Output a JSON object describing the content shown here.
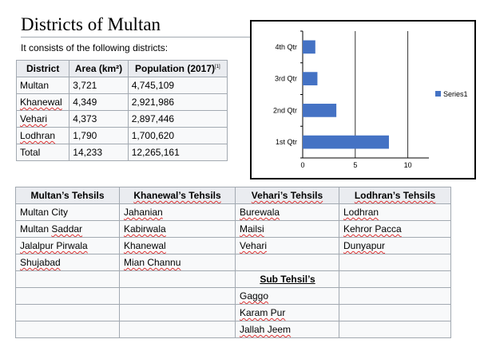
{
  "page": {
    "title": "Districts of Multan",
    "intro": "It consists of the following districts:"
  },
  "districts": {
    "headers": [
      "District",
      "Area (km²)",
      "Population (2017)"
    ],
    "ref_mark": "[1]",
    "rows": [
      [
        "Multan",
        "3,721",
        "4,745,109"
      ],
      [
        "Khanewal",
        "4,349",
        "2,921,986"
      ],
      [
        "Vehari",
        "4,373",
        "2,897,446"
      ],
      [
        "Lodhran",
        "1,790",
        "1,700,620"
      ],
      [
        "Total",
        "14,233",
        "12,265,161"
      ]
    ]
  },
  "chart_data": {
    "type": "bar",
    "orientation": "horizontal",
    "categories": [
      "1st Qtr",
      "2nd Qtr",
      "3rd Qtr",
      "4th Qtr"
    ],
    "series": [
      {
        "name": "Series1",
        "values": [
          8.2,
          3.2,
          1.4,
          1.2
        ],
        "color": "#4472c4"
      }
    ],
    "xlim": [
      0,
      12
    ],
    "xticks": [
      "0",
      "5",
      "10"
    ],
    "title": "",
    "xlabel": "",
    "ylabel": "",
    "grid": true,
    "legend": "right"
  },
  "tehsils": {
    "headers": [
      "Multan’s Tehsils",
      "Khanewal’s Tehsils",
      "Vehari’s Tehsils",
      "Lodhran’s Tehsils"
    ],
    "rows": [
      [
        "Multan City",
        "Jahanian",
        "Burewala",
        "Lodhran"
      ],
      [
        "Multan Saddar",
        "Kabirwala",
        "Mailsi",
        "Kehror Pacca"
      ],
      [
        "Jalalpur Pirwala",
        "Khanewal",
        "Vehari",
        "Dunyapur"
      ],
      [
        "Shujabad",
        "Mian Channu",
        "",
        ""
      ]
    ],
    "sub_tehsil_heading": "Sub Tehsil’s",
    "sub_tehsils": [
      "Gaggo",
      "Karam Pur",
      "Jallah Jeem"
    ]
  }
}
